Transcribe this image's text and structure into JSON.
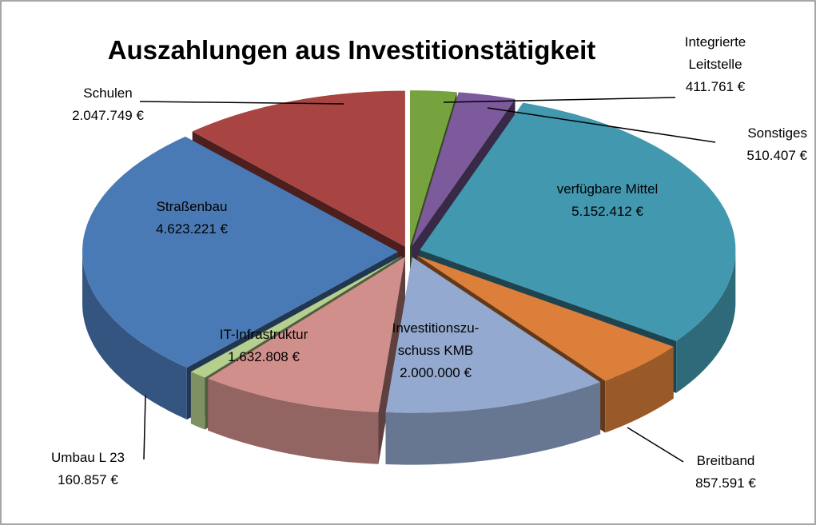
{
  "chart_data": {
    "type": "pie",
    "title": "Auszahlungen aus Investitionstätigkeit",
    "categories": [
      "Integrierte\nLeitstelle",
      "Sonstiges",
      "verfügbare Mittel",
      "Breitband",
      "Investitionszu-\nschuss KMB",
      "IT-Infrastruktur",
      "Umbau L 23",
      "Straßenbau",
      "Schulen"
    ],
    "values": [
      411761,
      510407,
      5152412,
      857591,
      2000000,
      1632808,
      160857,
      4623221,
      2047749
    ],
    "value_labels": [
      "411.761 €",
      "510.407 €",
      "5.152.412 €",
      "857.591 €",
      "2.000.000 €",
      "1.632.808 €",
      "160.857 €",
      "4.623.221 €",
      "2.047.749 €"
    ],
    "colors": [
      "#77a33f",
      "#7c5a9c",
      "#4198af",
      "#db7f3b",
      "#93a9cf",
      "#d18f8c",
      "#b5cf8e",
      "#4a7ab5",
      "#a84543"
    ]
  }
}
